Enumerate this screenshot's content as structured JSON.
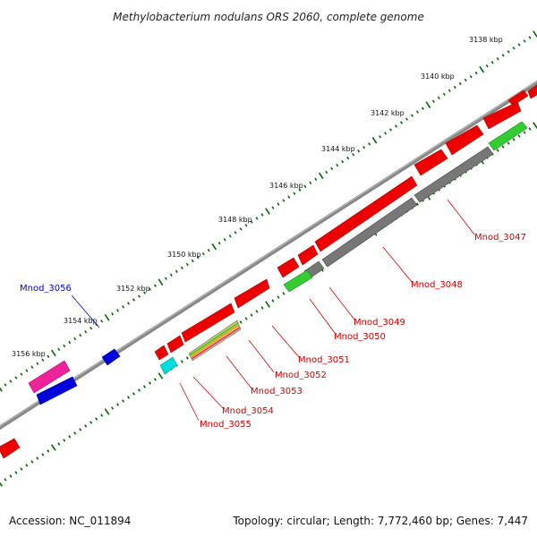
{
  "title": "Methylobacterium nodulans ORS 2060, complete genome",
  "footer": {
    "accession": "Accession: NC_011894",
    "topology": "Topology: circular; Length: 7,772,460 bp; Genes: 7,447"
  },
  "ruler_labels": [
    "3138 kbp",
    "3140 kbp",
    "3142 kbp",
    "3144 kbp",
    "3146 kbp",
    "3148 kbp",
    "3150 kbp",
    "3152 kbp",
    "3154 kbp",
    "3156 kbp"
  ],
  "gene_labels": {
    "mnod_3047": "Mnod_3047",
    "mnod_3048": "Mnod_3048",
    "mnod_3049": "Mnod_3049",
    "mnod_3050": "Mnod_3050",
    "mnod_3051": "Mnod_3051",
    "mnod_3052": "Mnod_3052",
    "mnod_3053": "Mnod_3053",
    "mnod_3054": "Mnod_3054",
    "mnod_3055": "Mnod_3055",
    "mnod_3056": "Mnod_3056"
  },
  "colors": {
    "cds_red": "#ee0000",
    "rna_gray": "#777777",
    "green": "#33cc33",
    "blue": "#0000dd",
    "pink": "#ee2299",
    "cyan": "#00dddd",
    "label_red": "#cc0000",
    "label_blue": "#0000cc",
    "tick_green": "#006600"
  }
}
